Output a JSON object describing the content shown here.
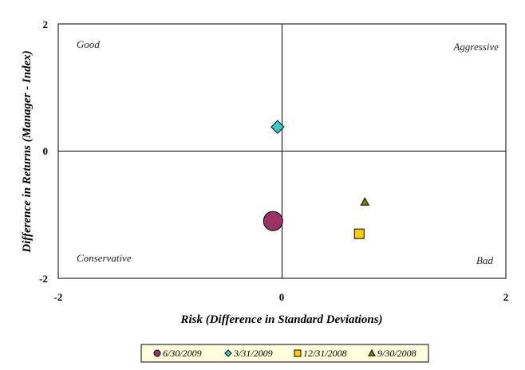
{
  "chart_data": {
    "type": "scatter",
    "title": "",
    "xlabel": "Risk (Difference in Standard Deviations)",
    "ylabel": "Difference in Returns (Manager - Index)",
    "xlim": [
      -2,
      2
    ],
    "ylim": [
      -2,
      2
    ],
    "x_ticks": [
      "-2",
      "0",
      "2"
    ],
    "y_ticks": [
      "2",
      "0",
      "-2"
    ],
    "grid": false,
    "legend_position": "bottom",
    "quadrant_labels": {
      "top_left": "Good",
      "top_right": "Aggressive",
      "bottom_left": "Conservative",
      "bottom_right": "Bad"
    },
    "series": [
      {
        "name": "6/30/2009",
        "x": -0.08,
        "y": -1.1,
        "marker": "circle",
        "color": "#993366"
      },
      {
        "name": "3/31/2009",
        "x": -0.04,
        "y": 0.38,
        "marker": "diamond",
        "color": "#33cccc"
      },
      {
        "name": "12/31/2008",
        "x": 0.69,
        "y": -1.3,
        "marker": "square",
        "color": "#ffcc00"
      },
      {
        "name": "9/30/2008",
        "x": 0.74,
        "y": -0.8,
        "marker": "triangle",
        "color": "#808000"
      }
    ]
  }
}
